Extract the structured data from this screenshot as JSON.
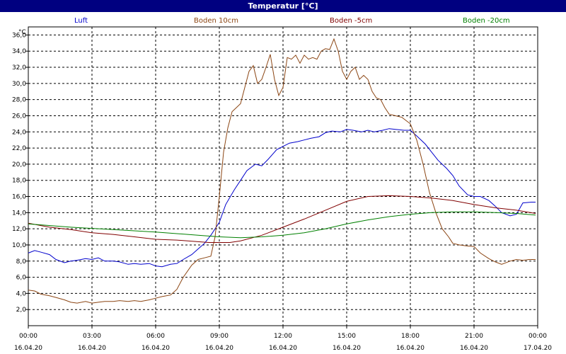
{
  "window": {
    "title": "Temperatur [°C]"
  },
  "chart_data": {
    "type": "line",
    "title": "Temperatur [°C]",
    "ylabel_unit": "°C",
    "ylim": [
      0,
      37
    ],
    "yticks": [
      "2,0",
      "4,0",
      "6,0",
      "8,0",
      "10,0",
      "12,0",
      "14,0",
      "16,0",
      "18,0",
      "20,0",
      "22,0",
      "24,0",
      "26,0",
      "28,0",
      "30,0",
      "32,0",
      "34,0",
      "36,0"
    ],
    "xlim": [
      0,
      24
    ],
    "xticks": [
      {
        "time": "00:00",
        "date": "16.04.20"
      },
      {
        "time": "03:00",
        "date": "16.04.20"
      },
      {
        "time": "06:00",
        "date": "16.04.20"
      },
      {
        "time": "09:00",
        "date": "16.04.20"
      },
      {
        "time": "12:00",
        "date": "16.04.20"
      },
      {
        "time": "15:00",
        "date": "16.04.20"
      },
      {
        "time": "18:00",
        "date": "16.04.20"
      },
      {
        "time": "21:00",
        "date": "16.04.20"
      },
      {
        "time": "00:00",
        "date": "17.04.20"
      }
    ],
    "grid": true,
    "legend_position": "top",
    "series": [
      {
        "name": "Luft",
        "color": "#0000cc",
        "x": [
          0,
          0.3,
          0.6,
          1.0,
          1.3,
          1.7,
          2.0,
          2.3,
          2.7,
          3.0,
          3.3,
          3.6,
          4.0,
          4.3,
          4.7,
          5.0,
          5.3,
          5.7,
          6.0,
          6.3,
          6.7,
          7.0,
          7.3,
          7.7,
          8.0,
          8.3,
          8.6,
          9.0,
          9.3,
          9.7,
          10.0,
          10.3,
          10.7,
          11.0,
          11.3,
          11.7,
          12.0,
          12.3,
          12.7,
          13.0,
          13.3,
          13.7,
          14.0,
          14.3,
          14.7,
          15.0,
          15.3,
          15.7,
          16.0,
          16.3,
          16.7,
          17.0,
          17.3,
          17.7,
          18.0,
          18.3,
          18.7,
          19.0,
          19.3,
          19.7,
          20.0,
          20.3,
          20.7,
          21.0,
          21.3,
          21.7,
          22.0,
          22.3,
          22.7,
          23.0,
          23.3,
          23.7,
          23.9
        ],
        "y": [
          9.0,
          9.3,
          9.1,
          8.8,
          8.2,
          7.8,
          8.0,
          8.1,
          8.3,
          8.2,
          8.4,
          8.0,
          8.0,
          7.9,
          7.6,
          7.7,
          7.6,
          7.7,
          7.4,
          7.3,
          7.6,
          7.7,
          8.2,
          8.8,
          9.5,
          10.2,
          11.2,
          12.8,
          15.0,
          16.8,
          18.0,
          19.2,
          20.0,
          19.8,
          20.6,
          21.8,
          22.2,
          22.6,
          22.8,
          23.0,
          23.2,
          23.4,
          23.9,
          24.1,
          24.0,
          24.3,
          24.2,
          24.0,
          24.2,
          24.0,
          24.2,
          24.4,
          24.3,
          24.2,
          24.2,
          23.5,
          22.5,
          21.5,
          20.5,
          19.5,
          18.6,
          17.3,
          16.2,
          16.0,
          16.0,
          15.5,
          14.8,
          14.0,
          13.6,
          13.8,
          15.2,
          15.3,
          15.3
        ]
      },
      {
        "name": "Boden 10cm",
        "color": "#8b4513",
        "x": [
          0,
          0.3,
          0.6,
          1.0,
          1.3,
          1.7,
          2.0,
          2.3,
          2.7,
          3.0,
          3.3,
          3.6,
          4.0,
          4.3,
          4.7,
          5.0,
          5.3,
          5.7,
          6.0,
          6.3,
          6.7,
          7.0,
          7.3,
          7.7,
          8.0,
          8.3,
          8.6,
          8.8,
          9.0,
          9.2,
          9.4,
          9.6,
          9.8,
          10.0,
          10.2,
          10.4,
          10.6,
          10.8,
          11.0,
          11.2,
          11.4,
          11.6,
          11.8,
          12.0,
          12.2,
          12.4,
          12.6,
          12.8,
          13.0,
          13.2,
          13.4,
          13.6,
          13.8,
          14.0,
          14.2,
          14.4,
          14.6,
          14.8,
          15.0,
          15.2,
          15.4,
          15.6,
          15.8,
          16.0,
          16.2,
          16.4,
          16.6,
          16.8,
          17.0,
          17.3,
          17.6,
          18.0,
          18.3,
          18.6,
          18.9,
          19.2,
          19.5,
          19.8,
          20.0,
          20.3,
          20.6,
          21.0,
          21.3,
          21.7,
          22.0,
          22.3,
          22.7,
          23.0,
          23.3,
          23.6,
          23.9
        ],
        "y": [
          4.4,
          4.3,
          3.9,
          3.7,
          3.5,
          3.2,
          2.9,
          2.8,
          3.0,
          2.8,
          2.9,
          3.0,
          3.0,
          3.1,
          3.0,
          3.1,
          3.0,
          3.2,
          3.4,
          3.6,
          3.8,
          4.5,
          6.0,
          7.5,
          8.2,
          8.4,
          8.6,
          11.0,
          16.0,
          21.5,
          24.5,
          26.5,
          27.0,
          27.5,
          29.5,
          31.5,
          32.2,
          30.0,
          30.5,
          32.0,
          33.6,
          30.5,
          28.5,
          29.5,
          33.2,
          33.0,
          33.5,
          32.5,
          33.5,
          33.0,
          33.2,
          33.0,
          34.0,
          34.3,
          34.2,
          35.5,
          34.0,
          31.5,
          30.5,
          31.5,
          32.0,
          30.5,
          31.0,
          30.5,
          29.0,
          28.2,
          28.0,
          27.0,
          26.2,
          26.0,
          25.8,
          25.0,
          23.0,
          20.0,
          16.5,
          14.0,
          12.0,
          11.0,
          10.2,
          10.0,
          9.9,
          9.8,
          9.0,
          8.3,
          7.9,
          7.6,
          8.0,
          8.2,
          8.1,
          8.2,
          8.2
        ]
      },
      {
        "name": "Boden -5cm",
        "color": "#800000",
        "x": [
          0,
          1,
          2,
          3,
          4,
          5,
          6,
          7,
          8,
          8.5,
          9.5,
          10,
          11,
          12,
          13,
          14,
          15,
          16,
          17,
          18,
          19,
          20,
          21,
          22,
          23,
          23.9
        ],
        "y": [
          12.7,
          12.2,
          11.9,
          11.5,
          11.3,
          11.0,
          10.7,
          10.6,
          10.4,
          10.3,
          10.3,
          10.5,
          11.2,
          12.2,
          13.2,
          14.3,
          15.4,
          16.0,
          16.1,
          16.0,
          15.8,
          15.5,
          15.0,
          14.6,
          14.3,
          13.9
        ]
      },
      {
        "name": "Boden -20cm",
        "color": "#008000",
        "x": [
          0,
          2,
          4,
          6,
          8,
          9,
          10,
          11,
          12,
          13,
          14,
          15,
          16,
          17,
          18,
          19,
          20,
          21,
          22,
          23,
          23.9
        ],
        "y": [
          12.6,
          12.2,
          11.9,
          11.6,
          11.2,
          11.0,
          10.9,
          11.0,
          11.2,
          11.5,
          12.0,
          12.6,
          13.1,
          13.5,
          13.8,
          14.0,
          14.1,
          14.1,
          14.0,
          13.9,
          13.7
        ]
      }
    ]
  }
}
